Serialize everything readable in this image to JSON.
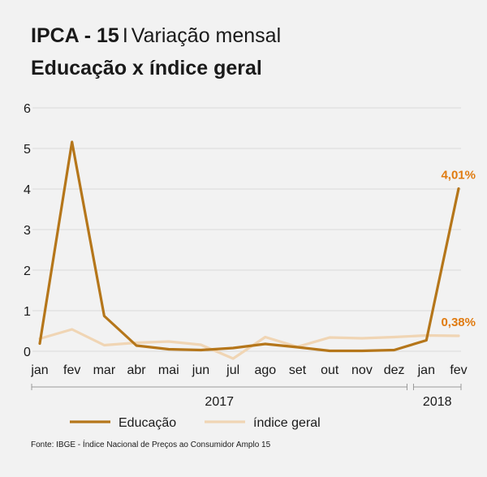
{
  "header": {
    "title_bold": "IPCA - 15",
    "title_sep": "I",
    "title_rest": "Variação mensal",
    "subtitle": "Educação x índice geral"
  },
  "source": "Fonte: IBGE - Índice Nacional de Preços ao Consumidor Amplo 15",
  "colors": {
    "educacao": "#b5761a",
    "indice_geral": "#f0d5b4",
    "label": "#e07b10",
    "grid": "#d9d9d9",
    "axis_text": "#1a1a1a"
  },
  "chart_data": {
    "type": "line",
    "categories": [
      "jan",
      "fev",
      "mar",
      "abr",
      "mai",
      "jun",
      "jul",
      "ago",
      "set",
      "out",
      "nov",
      "dez",
      "jan",
      "fev"
    ],
    "year_groups": [
      {
        "label": "2017",
        "start": 0,
        "end": 11
      },
      {
        "label": "2018",
        "start": 12,
        "end": 13
      }
    ],
    "ylim": [
      0,
      6
    ],
    "yticks": [
      "0",
      "1",
      "2",
      "3",
      "4",
      "5",
      "6"
    ],
    "grid": true,
    "legend_position": "bottom",
    "series": [
      {
        "name": "Educação",
        "color_key": "educacao",
        "values": [
          0.19,
          5.16,
          0.87,
          0.14,
          0.05,
          0.03,
          0.08,
          0.18,
          0.1,
          0.01,
          0.01,
          0.03,
          0.27,
          4.01
        ],
        "end_label": "4,01%"
      },
      {
        "name": "índice geral",
        "color_key": "indice_geral",
        "values": [
          0.31,
          0.54,
          0.15,
          0.21,
          0.24,
          0.16,
          -0.18,
          0.35,
          0.11,
          0.34,
          0.32,
          0.35,
          0.39,
          0.38
        ],
        "end_label": "0,38%"
      }
    ]
  }
}
